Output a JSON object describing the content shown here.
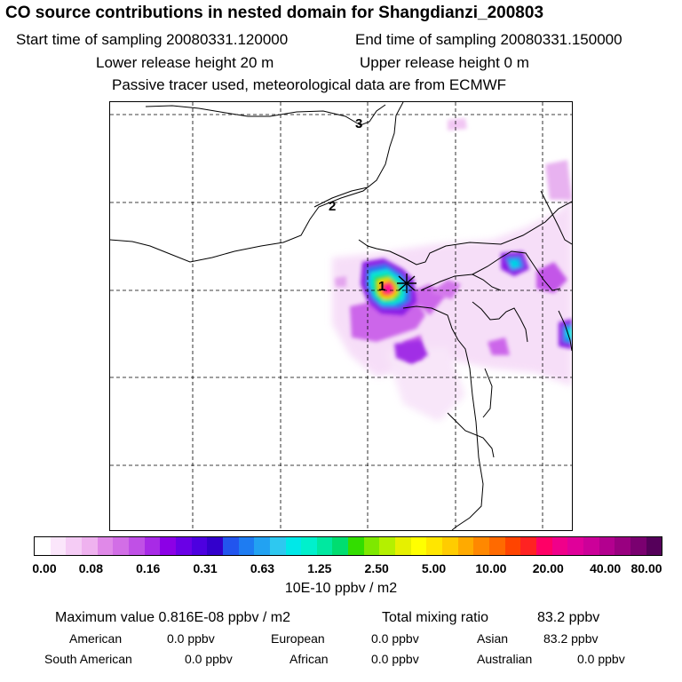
{
  "header": {
    "title": "CO  source contributions in nested domain for Shangdianzi_200803",
    "start_label": "Start time of sampling 20080331.120000",
    "end_label": "End time of sampling 20080331.150000",
    "lower_label": "Lower release height   20 m",
    "upper_label": "Upper release height    0 m",
    "note": "Passive tracer used, meteorological data are from ECMWF"
  },
  "map": {
    "contour_labels": [
      "1",
      "2",
      "3"
    ],
    "station_marker": "Shangdianzi receptor"
  },
  "colorbar": {
    "ticks": [
      "0.00",
      "0.08",
      "0.16",
      "0.31",
      "0.63",
      "1.25",
      "2.50",
      "5.00",
      "10.00",
      "20.00",
      "40.00",
      "80.00"
    ],
    "colors": [
      "#ffffff",
      "#fbe6fb",
      "#f5ccf5",
      "#efb2ef",
      "#e089e8",
      "#d26ee6",
      "#c050e6",
      "#a82ae6",
      "#8c00e6",
      "#6a00e6",
      "#4d00e0",
      "#3300cc",
      "#2255ee",
      "#1e7cf2",
      "#22a2f2",
      "#2ec8f0",
      "#00e8e8",
      "#00f0cc",
      "#00e8a0",
      "#00dd70",
      "#33dd00",
      "#7ee800",
      "#b4f000",
      "#e6f000",
      "#ffff00",
      "#ffe600",
      "#ffcc00",
      "#ffaa00",
      "#ff8800",
      "#ff6a00",
      "#ff4400",
      "#ff2222",
      "#ff0066",
      "#f0008a",
      "#e0009a",
      "#cc0099",
      "#b3008f",
      "#990080",
      "#7a0070",
      "#55005a"
    ],
    "unit": "10E-10 ppbv / m2"
  },
  "stats": {
    "max_label": "Maximum value  0.816E-08 ppbv / m2",
    "total_label": "Total mixing ratio",
    "total_value": "83.2 ppbv",
    "regions": [
      {
        "name": "American",
        "value": "0.0 ppbv"
      },
      {
        "name": "European",
        "value": "0.0 ppbv"
      },
      {
        "name": "Asian",
        "value": "83.2 ppbv"
      },
      {
        "name": "South American",
        "value": "0.0 ppbv"
      },
      {
        "name": "African",
        "value": "0.0 ppbv"
      },
      {
        "name": "Australian",
        "value": "0.0 ppbv"
      }
    ]
  }
}
